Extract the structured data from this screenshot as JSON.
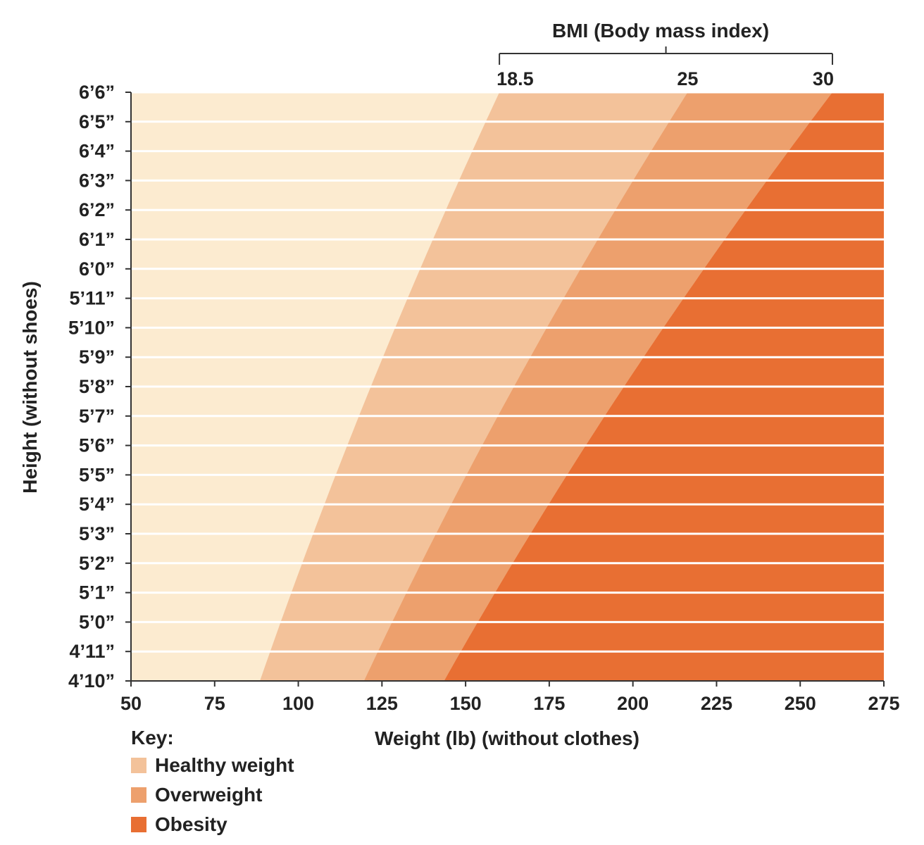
{
  "chart_data": {
    "type": "area",
    "title": "BMI (Body mass index)",
    "xlabel": "Weight (lb) (without clothes)",
    "ylabel": "Height (without shoes)",
    "xlim": [
      50,
      275
    ],
    "x_ticks": [
      50,
      75,
      100,
      125,
      150,
      175,
      200,
      225,
      250,
      275
    ],
    "y_ticks": [
      "4’10”",
      "4’11”",
      "5’0”",
      "5’1”",
      "5’2”",
      "5’3”",
      "5’4”",
      "5’5”",
      "5’6”",
      "5’7”",
      "5’8”",
      "5’9”",
      "5’10”",
      "5’11”",
      "6’0”",
      "6’1”",
      "6’2”",
      "6’3”",
      "6’4”",
      "6’5”",
      "6’6”"
    ],
    "y_inches": [
      58,
      59,
      60,
      61,
      62,
      63,
      64,
      65,
      66,
      67,
      68,
      69,
      70,
      71,
      72,
      73,
      74,
      75,
      76,
      77,
      78
    ],
    "bmi_thresholds": [
      {
        "label": "18.5",
        "bmi": 18.5
      },
      {
        "label": "25",
        "bmi": 25
      },
      {
        "label": "30",
        "bmi": 30
      }
    ],
    "series": [
      {
        "name": "Healthy weight",
        "bmi_range": [
          18.5,
          25
        ],
        "color": "#f3c29a"
      },
      {
        "name": "Overweight",
        "bmi_range": [
          25,
          30
        ],
        "color": "#eda06d"
      },
      {
        "name": "Obesity",
        "bmi_range": [
          30,
          null
        ],
        "color": "#e86f33"
      }
    ],
    "underweight_color": "#fcebd0",
    "grid": true,
    "legend_position": "bottom-left"
  },
  "key": {
    "title": "Key:",
    "items": [
      "Healthy weight",
      "Overweight",
      "Obesity"
    ]
  }
}
